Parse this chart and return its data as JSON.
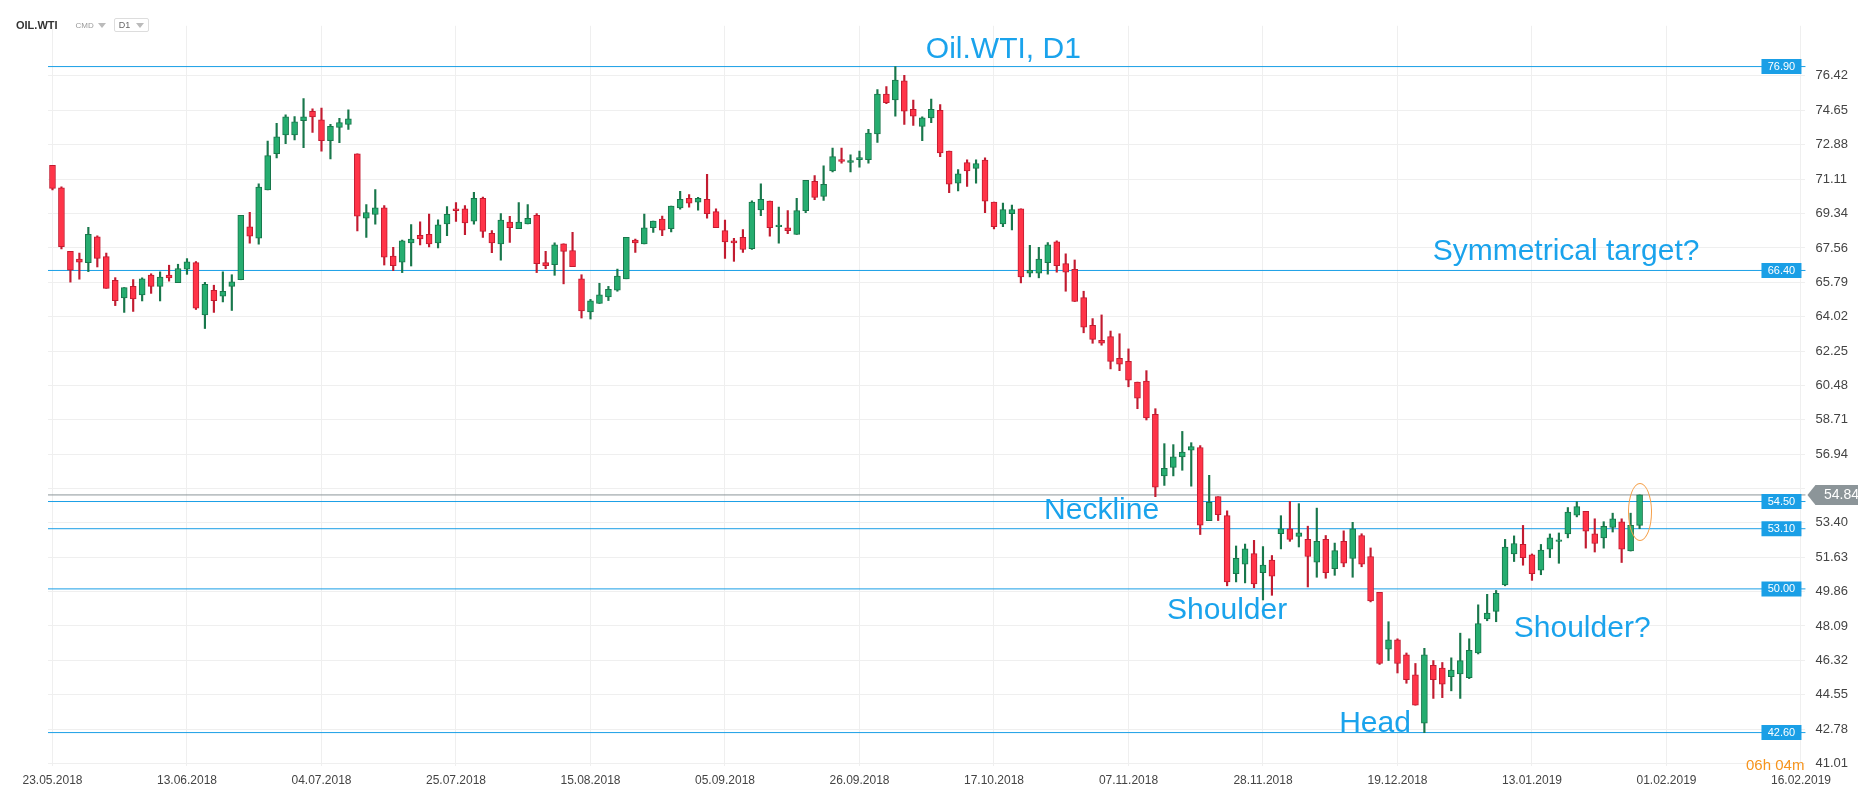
{
  "chart_data": {
    "type": "candlestick",
    "title": "Oil.WTI, D1",
    "categories": [
      "23.05.2018",
      null,
      null,
      null,
      null,
      null,
      null,
      null,
      null,
      null,
      null,
      null,
      null,
      null,
      null,
      "13.06.2018",
      null,
      null,
      null,
      null,
      null,
      null,
      null,
      null,
      null,
      null,
      null,
      null,
      null,
      null,
      "04.07.2018",
      null,
      null,
      null,
      null,
      null,
      null,
      null,
      null,
      null,
      null,
      null,
      null,
      null,
      null,
      "25.07.2018",
      null,
      null,
      null,
      null,
      null,
      null,
      null,
      null,
      null,
      null,
      null,
      null,
      null,
      null,
      "15.08.2018",
      null,
      null,
      null,
      null,
      null,
      null,
      null,
      null,
      null,
      null,
      null,
      null,
      null,
      null,
      "05.09.2018",
      null,
      null,
      null,
      null,
      null,
      null,
      null,
      null,
      null,
      null,
      null,
      null,
      null,
      null,
      "26.09.2018",
      null,
      null,
      null,
      null,
      null,
      null,
      null,
      null,
      null,
      null,
      null,
      null,
      null,
      null,
      "17.10.2018",
      null,
      null,
      null,
      null,
      null,
      null,
      null,
      null,
      null,
      null,
      null,
      null,
      null,
      null,
      "07.11.2018",
      null,
      null,
      null,
      null,
      null,
      null,
      null,
      null,
      null,
      null,
      null,
      null,
      null,
      null,
      "28.11.2018",
      null,
      null,
      null,
      null,
      null,
      null,
      null,
      null,
      null,
      null,
      null,
      null,
      null,
      null,
      "19.12.2018",
      null,
      null,
      null,
      null,
      null,
      null,
      null,
      null,
      null,
      null,
      null,
      null,
      null,
      null,
      "13.01.2019",
      null,
      null,
      null,
      null,
      null,
      null,
      null,
      null,
      null,
      null,
      null,
      null,
      null,
      null,
      "01.02.2019",
      null,
      null,
      null,
      null,
      null,
      null,
      null,
      null,
      null,
      null,
      null,
      null,
      null,
      null,
      "16.02.2019"
    ],
    "ohlc": [
      [
        71.82,
        71.82,
        70.55,
        70.63
      ],
      [
        70.65,
        70.71,
        67.51,
        67.63
      ],
      [
        67.38,
        67.38,
        65.8,
        66.41
      ],
      [
        66.99,
        67.3,
        65.95,
        66.83
      ],
      [
        66.8,
        68.62,
        66.34,
        68.26
      ],
      [
        68.13,
        68.18,
        66.58,
        67.02
      ],
      [
        67.11,
        67.3,
        65.48,
        65.48
      ],
      [
        65.89,
        66.03,
        64.59,
        64.85
      ],
      [
        64.99,
        65.52,
        64.24,
        65.52
      ],
      [
        65.58,
        65.93,
        64.29,
        64.94
      ],
      [
        65.14,
        66.02,
        64.83,
        65.97
      ],
      [
        66.16,
        66.23,
        65.22,
        65.58
      ],
      [
        65.58,
        66.33,
        64.83,
        66.06
      ],
      [
        66.16,
        66.67,
        65.85,
        66.02
      ],
      [
        65.77,
        66.72,
        65.77,
        66.5
      ],
      [
        66.46,
        67.01,
        66.2,
        66.84
      ],
      [
        66.8,
        66.86,
        64.39,
        64.46
      ],
      [
        64.11,
        65.79,
        63.41,
        65.68
      ],
      [
        65.38,
        65.64,
        64.24,
        64.85
      ],
      [
        65.07,
        66.33,
        64.78,
        65.33
      ],
      [
        65.58,
        66.18,
        64.34,
        65.82
      ],
      [
        65.92,
        69.24,
        65.92,
        69.24
      ],
      [
        68.65,
        69.4,
        67.8,
        68.16
      ],
      [
        68.06,
        70.86,
        67.76,
        70.7
      ],
      [
        70.55,
        73.06,
        70.55,
        72.31
      ],
      [
        72.41,
        73.98,
        72.2,
        73.28
      ],
      [
        73.38,
        74.42,
        72.93,
        74.31
      ],
      [
        73.38,
        74.32,
        73.12,
        74.06
      ],
      [
        74.11,
        75.25,
        72.73,
        74.31
      ],
      [
        74.6,
        74.72,
        73.51,
        74.31
      ],
      [
        74.16,
        74.76,
        72.54,
        73.09
      ],
      [
        73.09,
        73.93,
        72.15,
        73.82
      ],
      [
        73.77,
        74.23,
        72.98,
        74.02
      ],
      [
        73.92,
        74.67,
        73.66,
        74.21
      ],
      [
        72.41,
        72.41,
        68.44,
        69.19
      ],
      [
        69.09,
        69.79,
        68.1,
        69.38
      ],
      [
        69.29,
        70.57,
        68.78,
        69.63
      ],
      [
        69.63,
        69.74,
        66.68,
        67.09
      ],
      [
        67.14,
        67.59,
        66.39,
        66.65
      ],
      [
        66.83,
        67.97,
        66.29,
        67.92
      ],
      [
        67.82,
        68.76,
        66.63,
        68.02
      ],
      [
        68.21,
        68.91,
        67.71,
        68.02
      ],
      [
        68.26,
        69.3,
        67.61,
        67.77
      ],
      [
        67.82,
        69.01,
        67.56,
        68.75
      ],
      [
        68.8,
        69.69,
        68.19,
        69.29
      ],
      [
        69.58,
        69.89,
        68.93,
        69.48
      ],
      [
        69.58,
        69.74,
        68.24,
        68.85
      ],
      [
        68.94,
        70.42,
        68.78,
        70.11
      ],
      [
        70.11,
        70.18,
        68.1,
        68.41
      ],
      [
        68.31,
        68.46,
        67.32,
        67.82
      ],
      [
        67.77,
        69.33,
        66.93,
        68.99
      ],
      [
        68.89,
        69.19,
        67.85,
        68.6
      ],
      [
        68.55,
        69.89,
        68.55,
        68.89
      ],
      [
        68.8,
        69.79,
        68.8,
        69.09
      ],
      [
        69.24,
        69.33,
        66.29,
        66.75
      ],
      [
        66.8,
        67.38,
        66.49,
        66.65
      ],
      [
        66.7,
        67.82,
        66.15,
        67.72
      ],
      [
        67.77,
        67.77,
        65.71,
        67.38
      ],
      [
        67.43,
        68.36,
        66.6,
        66.6
      ],
      [
        65.97,
        66.18,
        63.95,
        64.31
      ],
      [
        64.26,
        64.91,
        63.9,
        64.84
      ],
      [
        64.7,
        65.74,
        64.7,
        65.14
      ],
      [
        65.04,
        65.58,
        64.85,
        65.43
      ],
      [
        65.38,
        66.47,
        65.33,
        66.11
      ],
      [
        65.97,
        68.11,
        65.97,
        68.11
      ],
      [
        67.97,
        68.02,
        67.33,
        67.82
      ],
      [
        67.77,
        69.3,
        67.77,
        68.6
      ],
      [
        68.6,
        68.94,
        68.36,
        68.94
      ],
      [
        69.04,
        69.2,
        68.19,
        68.48
      ],
      [
        68.55,
        69.72,
        68.39,
        69.72
      ],
      [
        69.62,
        70.47,
        69.56,
        70.06
      ],
      [
        70.11,
        70.31,
        69.66,
        69.87
      ],
      [
        69.92,
        70.16,
        69.51,
        70.11
      ],
      [
        70.06,
        71.35,
        69.09,
        69.33
      ],
      [
        69.43,
        69.57,
        68.6,
        68.6
      ],
      [
        68.45,
        69.0,
        67.02,
        67.87
      ],
      [
        67.92,
        68.06,
        66.87,
        67.82
      ],
      [
        68.11,
        68.5,
        67.33,
        67.48
      ],
      [
        67.52,
        69.98,
        67.48,
        69.92
      ],
      [
        69.52,
        70.86,
        69.22,
        70.06
      ],
      [
        69.97,
        69.97,
        68.16,
        68.6
      ],
      [
        68.65,
        69.67,
        67.8,
        68.74
      ],
      [
        68.6,
        69.48,
        68.29,
        68.45
      ],
      [
        68.26,
        70.11,
        68.26,
        69.48
      ],
      [
        69.48,
        71.04,
        69.38,
        71.04
      ],
      [
        70.99,
        71.28,
        70.04,
        70.16
      ],
      [
        70.21,
        71.79,
        70.01,
        70.84
      ],
      [
        71.52,
        72.7,
        71.48,
        72.26
      ],
      [
        72.11,
        72.7,
        71.92,
        72.01
      ],
      [
        71.96,
        72.35,
        71.48,
        72.06
      ],
      [
        72.11,
        72.55,
        71.72,
        72.21
      ],
      [
        72.11,
        73.67,
        71.92,
        73.48
      ],
      [
        73.43,
        75.72,
        72.99,
        75.48
      ],
      [
        75.48,
        75.87,
        74.99,
        75.04
      ],
      [
        75.18,
        76.9,
        74.35,
        76.21
      ],
      [
        76.16,
        76.45,
        73.92,
        74.6
      ],
      [
        74.7,
        75.18,
        73.87,
        74.35
      ],
      [
        73.82,
        74.31,
        73.09,
        74.26
      ],
      [
        74.26,
        75.23,
        74.01,
        74.7
      ],
      [
        74.65,
        74.94,
        72.26,
        72.45
      ],
      [
        72.55,
        72.55,
        70.4,
        70.84
      ],
      [
        70.89,
        71.6,
        70.49,
        71.38
      ],
      [
        71.95,
        72.1,
        70.73,
        71.53
      ],
      [
        71.66,
        72.1,
        70.89,
        71.9
      ],
      [
        72.08,
        72.2,
        69.38,
        69.97
      ],
      [
        69.92,
        69.92,
        68.54,
        68.65
      ],
      [
        68.8,
        69.87,
        68.65,
        69.53
      ],
      [
        69.33,
        69.77,
        68.49,
        69.53
      ],
      [
        69.58,
        69.58,
        65.76,
        66.07
      ],
      [
        66.26,
        67.69,
        66.07,
        66.41
      ],
      [
        66.26,
        67.59,
        66.02,
        66.99
      ],
      [
        66.8,
        67.84,
        66.21,
        67.72
      ],
      [
        67.87,
        67.92,
        66.31,
        66.65
      ],
      [
        66.75,
        67.25,
        65.33,
        66.31
      ],
      [
        66.46,
        66.94,
        64.8,
        64.8
      ],
      [
        65.0,
        65.33,
        63.19,
        63.48
      ],
      [
        63.58,
        63.92,
        62.65,
        62.85
      ],
      [
        62.8,
        64.11,
        62.55,
        62.65
      ],
      [
        62.99,
        63.28,
        61.33,
        61.72
      ],
      [
        61.87,
        63.14,
        61.24,
        61.58
      ],
      [
        61.72,
        62.36,
        60.41,
        60.75
      ],
      [
        60.65,
        60.65,
        59.28,
        59.82
      ],
      [
        60.7,
        61.24,
        58.7,
        58.8
      ],
      [
        58.99,
        59.28,
        54.75,
        55.24
      ],
      [
        55.82,
        57.48,
        55.33,
        56.21
      ],
      [
        56.26,
        57.43,
        55.82,
        56.8
      ],
      [
        56.8,
        58.11,
        56.11,
        57.04
      ],
      [
        57.14,
        57.53,
        55.29,
        57.33
      ],
      [
        57.28,
        57.38,
        52.8,
        53.28
      ],
      [
        53.52,
        55.85,
        53.52,
        54.46
      ],
      [
        54.75,
        54.75,
        53.52,
        53.82
      ],
      [
        53.77,
        54.02,
        50.16,
        50.36
      ],
      [
        50.79,
        52.21,
        50.36,
        51.57
      ],
      [
        51.28,
        52.31,
        50.31,
        52.06
      ],
      [
        51.82,
        52.5,
        50.06,
        50.26
      ],
      [
        50.84,
        52.18,
        49.43,
        51.23
      ],
      [
        51.48,
        51.72,
        49.67,
        50.65
      ],
      [
        52.84,
        53.77,
        52.06,
        53.09
      ],
      [
        53.09,
        54.5,
        52.45,
        52.55
      ],
      [
        52.7,
        54.39,
        52.16,
        52.89
      ],
      [
        52.55,
        53.23,
        50.1,
        51.67
      ],
      [
        51.38,
        54.16,
        50.6,
        52.45
      ],
      [
        52.55,
        52.75,
        50.55,
        50.84
      ],
      [
        51.04,
        52.36,
        50.7,
        51.97
      ],
      [
        52.45,
        52.99,
        51.14,
        51.33
      ],
      [
        51.57,
        53.43,
        50.6,
        53.09
      ],
      [
        52.75,
        52.84,
        51.14,
        51.28
      ],
      [
        51.67,
        52.11,
        49.33,
        49.38
      ],
      [
        49.82,
        49.82,
        46.11,
        46.16
      ],
      [
        46.89,
        48.31,
        46.31,
        47.38
      ],
      [
        47.38,
        47.43,
        45.67,
        46.16
      ],
      [
        46.6,
        46.7,
        45.14,
        45.33
      ],
      [
        45.58,
        46.16,
        44.01,
        44.01
      ],
      [
        43.09,
        46.94,
        42.6,
        46.6
      ],
      [
        46.06,
        46.31,
        44.36,
        45.33
      ],
      [
        45.92,
        46.21,
        44.4,
        45.09
      ],
      [
        45.48,
        46.45,
        44.75,
        45.82
      ],
      [
        45.62,
        47.72,
        44.36,
        46.31
      ],
      [
        45.43,
        47.43,
        45.38,
        46.84
      ],
      [
        46.7,
        49.18,
        46.65,
        48.21
      ],
      [
        48.45,
        49.72,
        48.36,
        48.75
      ],
      [
        48.84,
        49.92,
        48.31,
        49.77
      ],
      [
        50.21,
        52.55,
        50.16,
        52.16
      ],
      [
        51.8,
        52.73,
        51.41,
        52.34
      ],
      [
        52.29,
        53.27,
        51.22,
        51.61
      ],
      [
        51.75,
        51.8,
        50.44,
        50.78
      ],
      [
        50.97,
        52.29,
        50.73,
        52.0
      ],
      [
        52.05,
        52.83,
        51.61,
        52.63
      ],
      [
        52.44,
        52.88,
        51.32,
        52.53
      ],
      [
        52.83,
        54.19,
        52.63,
        53.95
      ],
      [
        53.8,
        54.49,
        53.71,
        54.24
      ],
      [
        53.99,
        53.99,
        52.1,
        52.97
      ],
      [
        52.83,
        53.61,
        51.9,
        52.34
      ],
      [
        52.63,
        53.46,
        52.1,
        53.22
      ],
      [
        53.17,
        53.9,
        52.93,
        53.61
      ],
      [
        53.46,
        53.61,
        51.36,
        52.05
      ],
      [
        51.95,
        53.9,
        51.95,
        53.27
      ],
      [
        53.27,
        54.84,
        53.1,
        54.84
      ],
      null,
      null,
      null,
      null,
      null,
      null,
      null,
      null,
      null,
      null,
      null,
      null,
      null,
      null,
      null,
      null,
      null,
      null
    ],
    "ylim": [
      40.9,
      79.0
    ],
    "yticks": [
      41.01,
      42.78,
      44.55,
      46.32,
      48.09,
      49.86,
      51.63,
      {
        "value": 53.4,
        "label": "53.40"
      },
      {
        "value": 55.17,
        "label": null
      },
      56.94,
      58.71,
      60.48,
      62.25,
      64.02,
      65.79,
      67.56,
      69.34,
      71.11,
      72.88,
      74.65,
      76.42
    ],
    "grid": true,
    "ref_lines": [
      {
        "axis": "y",
        "value": 76.9,
        "label": "76.90",
        "color": "#1a9fe6"
      },
      {
        "axis": "y",
        "value": 66.4,
        "label": "66.40",
        "color": "#1a9fe6"
      },
      {
        "axis": "y",
        "value": 54.5,
        "label": "54.50",
        "color": "#1a9fe6"
      },
      {
        "axis": "y",
        "value": 53.1,
        "label": "53.10",
        "color": "#1a9fe6"
      },
      {
        "axis": "y",
        "value": 50.0,
        "label": "50.00",
        "color": "#1a9fe6"
      },
      {
        "axis": "y",
        "value": 42.6,
        "label": "42.60",
        "color": "#1a9fe6"
      },
      {
        "axis": "y",
        "value": 54.84,
        "label": "54.84",
        "color": "#8c9599"
      }
    ],
    "annotations": [
      "Symmetrical target?",
      "Neckline",
      "Shoulder",
      "Shoulder?",
      "Head",
      "OIL.WTI",
      "CMD",
      "D1",
      "06h 04m"
    ]
  }
}
